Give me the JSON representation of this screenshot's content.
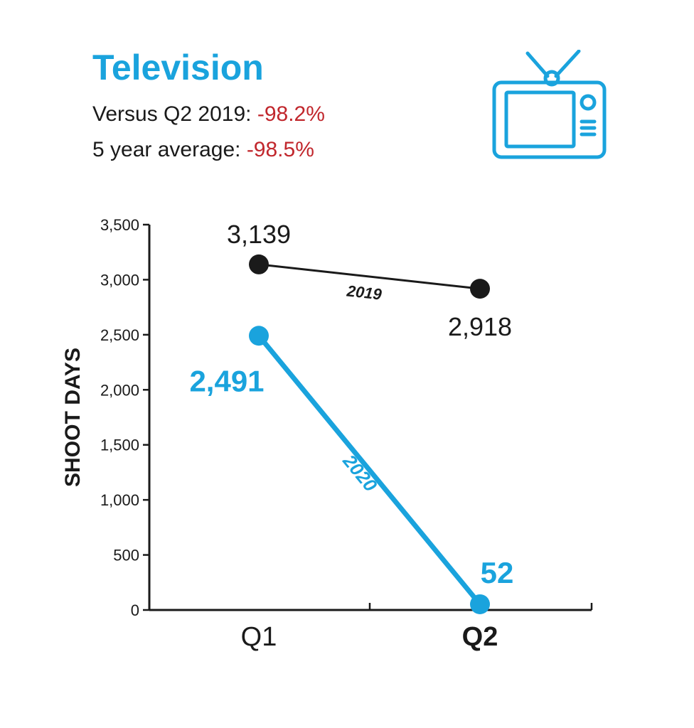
{
  "header": {
    "title": "Television",
    "stat1_label": "Versus Q2 2019:",
    "stat1_value": "-98.2%",
    "stat2_label": "5 year average:",
    "stat2_value": "-98.5%",
    "icon": "television-icon"
  },
  "colors": {
    "accent": "#1aa3dd",
    "negative": "#c1272d",
    "series_2019": "#1a1a1a",
    "series_2020": "#1aa3dd"
  },
  "chart_data": {
    "type": "line",
    "categories": [
      "Q1",
      "Q2"
    ],
    "ylabel": "SHOOT DAYS",
    "xlabel": "",
    "ylim": [
      0,
      3500
    ],
    "yticks": [
      0,
      500,
      1000,
      1500,
      2000,
      2500,
      3000,
      3500
    ],
    "ytick_labels": [
      "0",
      "500",
      "1,000",
      "1,500",
      "2,000",
      "2,500",
      "3,000",
      "3,500"
    ],
    "grid": false,
    "series": [
      {
        "name": "2019",
        "values": [
          3139,
          2918
        ],
        "labels": [
          "3,139",
          "2,918"
        ]
      },
      {
        "name": "2020",
        "values": [
          2491,
          52
        ],
        "labels": [
          "2,491",
          "52"
        ]
      }
    ]
  }
}
